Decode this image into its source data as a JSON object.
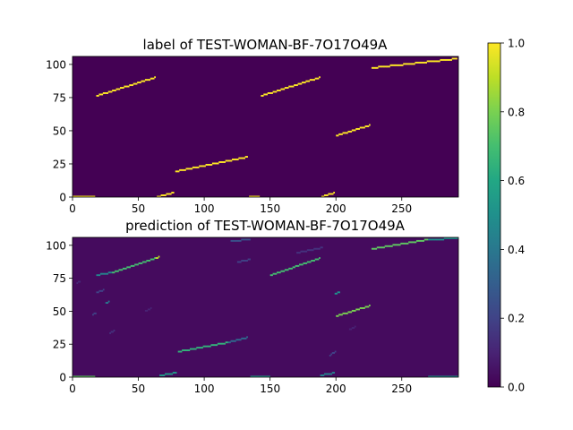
{
  "chart_data": [
    {
      "type": "heatmap",
      "title": "label of TEST-WOMAN-BF-7O17O49A",
      "xlim": [
        0,
        293
      ],
      "ylim": [
        0,
        106
      ],
      "x_ticks": [
        0,
        50,
        100,
        150,
        200,
        250
      ],
      "y_ticks": [
        0,
        25,
        50,
        75,
        100
      ],
      "background_value": 0.0,
      "segments": [
        {
          "x": [
            0,
            17
          ],
          "y": [
            0,
            0
          ],
          "value": 1.0
        },
        {
          "x": [
            18,
            63
          ],
          "y": [
            76,
            90
          ],
          "value": 1.0
        },
        {
          "x": [
            64,
            77
          ],
          "y": [
            0,
            3
          ],
          "value": 1.0
        },
        {
          "x": [
            78,
            133
          ],
          "y": [
            19,
            30
          ],
          "value": 1.0
        },
        {
          "x": [
            134,
            142
          ],
          "y": [
            0,
            0
          ],
          "value": 1.0
        },
        {
          "x": [
            143,
            188
          ],
          "y": [
            76,
            90
          ],
          "value": 1.0
        },
        {
          "x": [
            189,
            199
          ],
          "y": [
            0,
            3
          ],
          "value": 1.0
        },
        {
          "x": [
            200,
            226
          ],
          "y": [
            46,
            54
          ],
          "value": 1.0
        },
        {
          "x": [
            227,
            292
          ],
          "y": [
            97,
            104
          ],
          "value": 1.0
        }
      ]
    },
    {
      "type": "heatmap",
      "title": "prediction of TEST-WOMAN-BF-7O17O49A",
      "xlim": [
        0,
        293
      ],
      "ylim": [
        0,
        106
      ],
      "x_ticks": [
        0,
        50,
        100,
        150,
        200,
        250
      ],
      "y_ticks": [
        0,
        25,
        50,
        75,
        100
      ],
      "background_value": 0.03,
      "segments": [
        {
          "x": [
            0,
            17
          ],
          "y": [
            0,
            0
          ],
          "value": 0.75
        },
        {
          "x": [
            18,
            30
          ],
          "y": [
            77,
            79
          ],
          "value": 0.45
        },
        {
          "x": [
            30,
            63
          ],
          "y": [
            79,
            90
          ],
          "value": 0.7
        },
        {
          "x": [
            63,
            66
          ],
          "y": [
            90,
            91
          ],
          "value": 0.9
        },
        {
          "x": [
            66,
            79
          ],
          "y": [
            1,
            3
          ],
          "value": 0.55
        },
        {
          "x": [
            80,
            118
          ],
          "y": [
            19,
            26
          ],
          "value": 0.65
        },
        {
          "x": [
            118,
            133
          ],
          "y": [
            26,
            30
          ],
          "value": 0.35
        },
        {
          "x": [
            135,
            150
          ],
          "y": [
            0,
            0
          ],
          "value": 0.55
        },
        {
          "x": [
            150,
            188
          ],
          "y": [
            77,
            90
          ],
          "value": 0.7
        },
        {
          "x": [
            188,
            199
          ],
          "y": [
            1,
            3
          ],
          "value": 0.45
        },
        {
          "x": [
            200,
            226
          ],
          "y": [
            46,
            54
          ],
          "value": 0.8
        },
        {
          "x": [
            227,
            270
          ],
          "y": [
            97,
            104
          ],
          "value": 0.75
        },
        {
          "x": [
            270,
            293
          ],
          "y": [
            104,
            105
          ],
          "value": 0.5
        },
        {
          "x": [
            270,
            293
          ],
          "y": [
            0,
            0
          ],
          "value": 0.5
        },
        {
          "x": [
            120,
            135
          ],
          "y": [
            103,
            104
          ],
          "value": 0.25
        },
        {
          "x": [
            125,
            135
          ],
          "y": [
            87,
            89
          ],
          "value": 0.2
        },
        {
          "x": [
            170,
            190
          ],
          "y": [
            94,
            98
          ],
          "value": 0.15
        },
        {
          "x": [
            195,
            200
          ],
          "y": [
            16,
            20
          ],
          "value": 0.2
        },
        {
          "x": [
            199,
            203
          ],
          "y": [
            63,
            64
          ],
          "value": 0.5
        },
        {
          "x": [
            25,
            28
          ],
          "y": [
            56,
            57
          ],
          "value": 0.4
        },
        {
          "x": [
            18,
            24
          ],
          "y": [
            64,
            66
          ],
          "value": 0.2
        },
        {
          "x": [
            15,
            18
          ],
          "y": [
            47,
            49
          ],
          "value": 0.2
        },
        {
          "x": [
            28,
            32
          ],
          "y": [
            33,
            35
          ],
          "value": 0.15
        },
        {
          "x": [
            3,
            6
          ],
          "y": [
            71,
            73
          ],
          "value": 0.12
        },
        {
          "x": [
            55,
            60
          ],
          "y": [
            50,
            52
          ],
          "value": 0.1
        },
        {
          "x": [
            210,
            215
          ],
          "y": [
            36,
            38
          ],
          "value": 0.1
        }
      ]
    }
  ],
  "colorbar": {
    "colormap": "viridis",
    "min": 0.0,
    "max": 1.0,
    "ticks": [
      "0.0",
      "0.2",
      "0.4",
      "0.6",
      "0.8",
      "1.0"
    ]
  }
}
